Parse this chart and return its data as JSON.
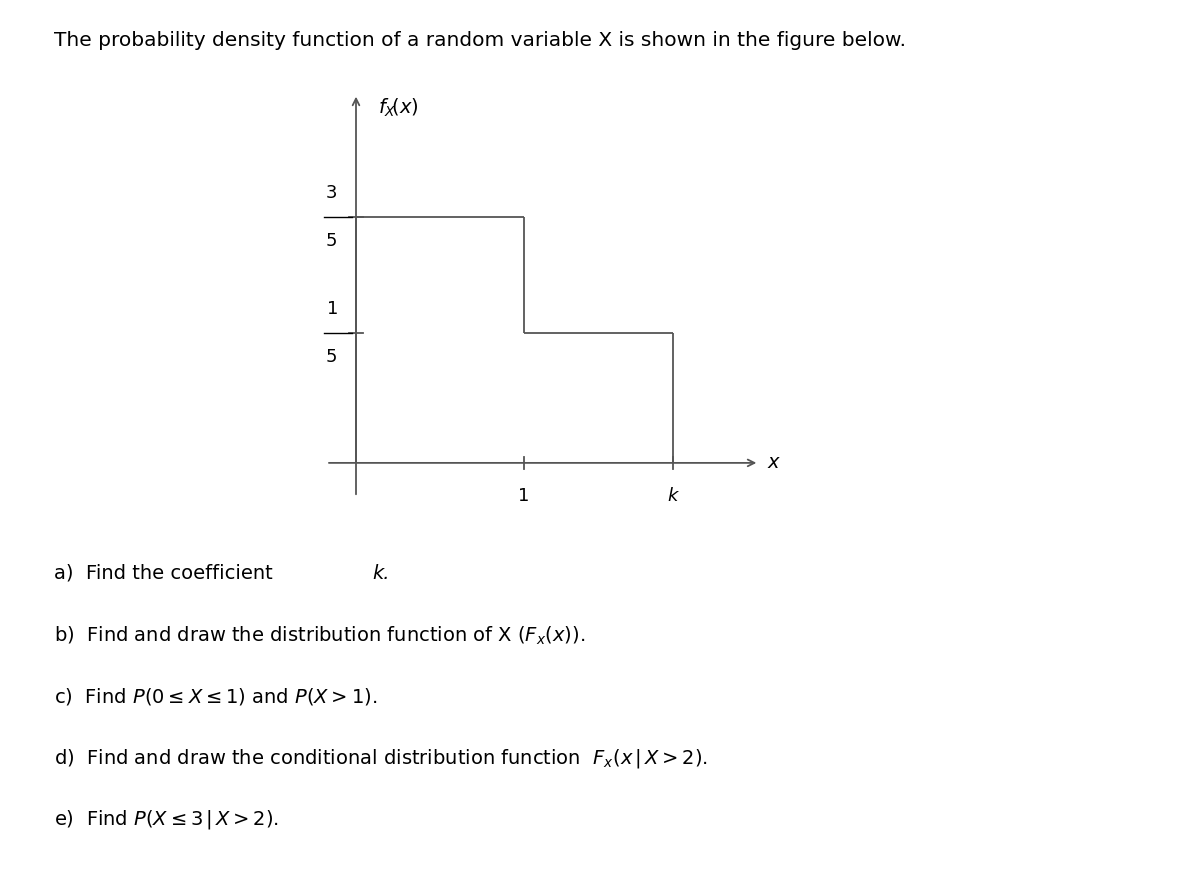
{
  "title_text": "The probability density function of a random variable X is shown in the figure below.",
  "y_label_high_num": "3",
  "y_label_high_den": "5",
  "y_label_low_num": "1",
  "y_label_low_den": "5",
  "x_tick_1": "1",
  "x_tick_k": "k",
  "axis_ylabel": "$f_X(x)$",
  "axis_xlabel": "$x$",
  "yn_high": 0.72,
  "yn_low": 0.38,
  "xn_0": 0.0,
  "xn_1": 0.45,
  "xn_k": 0.85,
  "line_color": "#555555",
  "text_color": "#000000",
  "background_color": "#ffffff",
  "q_a": "a) Find the coefficient ",
  "q_a_k": "k",
  "q_b": "b) Find and draw the distribution function of X ",
  "q_c": "c) Find P(0 ≤ X ≤ 1) and P(X > 1).",
  "q_d": "d) Find and draw the conditional distribution function ",
  "q_e": "e) Find P(X ≤ 3|X > 2)."
}
